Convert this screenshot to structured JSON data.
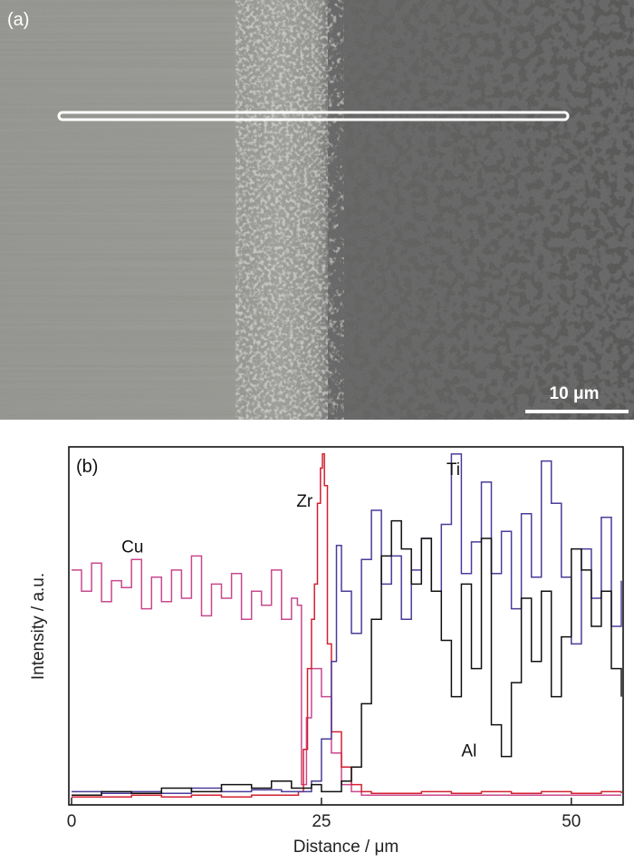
{
  "panel_a": {
    "label": "(a)",
    "scale_bar_label": "10 μm"
  },
  "panel_b": {
    "label": "(b)"
  },
  "chart_data": {
    "type": "line",
    "title": "",
    "xlabel": "Distance / μm",
    "ylabel": "Intensity / a.u.",
    "xlim": [
      0,
      55
    ],
    "ylim": [
      0,
      100
    ],
    "x_ticks": [
      0,
      25,
      50
    ],
    "x_tick_labels": [
      "0",
      "25",
      "50"
    ],
    "grid": false,
    "colors": {
      "Cu": "#c8488e",
      "Zr": "#d42030",
      "Ti": "#4a3c9a",
      "Al": "#111111"
    },
    "series": [
      {
        "name": "Cu",
        "label_at": [
          5,
          71
        ],
        "x": [
          0,
          1,
          2,
          3,
          4,
          5,
          6,
          7,
          8,
          9,
          10,
          11,
          12,
          13,
          14,
          15,
          16,
          17,
          18,
          19,
          20,
          21,
          22,
          22.6,
          23,
          23.5,
          24,
          25,
          26,
          27,
          28,
          29,
          30,
          32,
          35,
          38,
          41,
          44,
          47,
          50,
          53,
          55
        ],
        "values": [
          66,
          60,
          68,
          57,
          63,
          61,
          69,
          55,
          64,
          57,
          66,
          58,
          70,
          53,
          62,
          58,
          65,
          52,
          60,
          56,
          66,
          52,
          58,
          56,
          5,
          24,
          38,
          30,
          14,
          5,
          3,
          2,
          2,
          2,
          2,
          2,
          2,
          2,
          2,
          2,
          2,
          2
        ]
      },
      {
        "name": "Zr",
        "label_at": [
          22.5,
          84
        ],
        "x": [
          0,
          3,
          6,
          9,
          12,
          15,
          18,
          21,
          22.7,
          23.2,
          23.6,
          24.0,
          24.3,
          24.6,
          24.9,
          25.1,
          25.3,
          25.6,
          26.0,
          27,
          28,
          29,
          30,
          32,
          35,
          38,
          41,
          44,
          47,
          50,
          53,
          55
        ],
        "values": [
          1.5,
          1.5,
          2,
          1.5,
          2,
          1.5,
          2,
          2,
          3,
          15,
          38,
          52,
          62,
          85,
          95,
          99,
          90,
          45,
          20,
          10,
          5,
          3,
          2.5,
          2.5,
          3,
          2.5,
          3,
          2.5,
          3,
          2.5,
          3,
          2.5
        ]
      },
      {
        "name": "Ti",
        "label_at": [
          37.5,
          93
        ],
        "x": [
          0,
          3,
          6,
          9,
          12,
          15,
          18,
          21,
          23,
          24,
          25,
          26,
          26.5,
          27,
          28,
          29,
          30,
          31,
          32,
          33,
          34,
          35,
          36,
          37,
          38,
          39,
          40,
          41,
          42,
          43,
          44,
          45,
          46,
          47,
          48,
          49,
          50,
          51,
          52,
          53,
          54,
          55
        ],
        "values": [
          3,
          2.5,
          3,
          2.5,
          4,
          3,
          3.5,
          3,
          3,
          6,
          18,
          40,
          73,
          60,
          48,
          69,
          83,
          62,
          70,
          52,
          66,
          75,
          60,
          79,
          99,
          65,
          74,
          91,
          65,
          77,
          55,
          82,
          64,
          97,
          85,
          64,
          45,
          72,
          58,
          81,
          50,
          63
        ]
      },
      {
        "name": "Al",
        "label_at": [
          39,
          13
        ],
        "x": [
          0,
          3,
          6,
          9,
          12,
          15,
          18,
          20,
          22,
          24,
          25,
          26,
          27,
          28,
          29,
          30,
          31,
          32,
          33,
          34,
          35,
          36,
          37,
          38,
          39,
          40,
          41,
          42,
          43,
          44,
          45,
          46,
          47,
          48,
          49,
          50,
          51,
          52,
          53,
          54,
          55
        ],
        "values": [
          2,
          3,
          2.5,
          4,
          3,
          5,
          4,
          6,
          4,
          5,
          3,
          3,
          6,
          10,
          28,
          52,
          70,
          80,
          72,
          62,
          75,
          60,
          46,
          30,
          62,
          38,
          75,
          22,
          13,
          34,
          58,
          40,
          60,
          30,
          47,
          72,
          66,
          50,
          60,
          38,
          30
        ]
      }
    ]
  }
}
